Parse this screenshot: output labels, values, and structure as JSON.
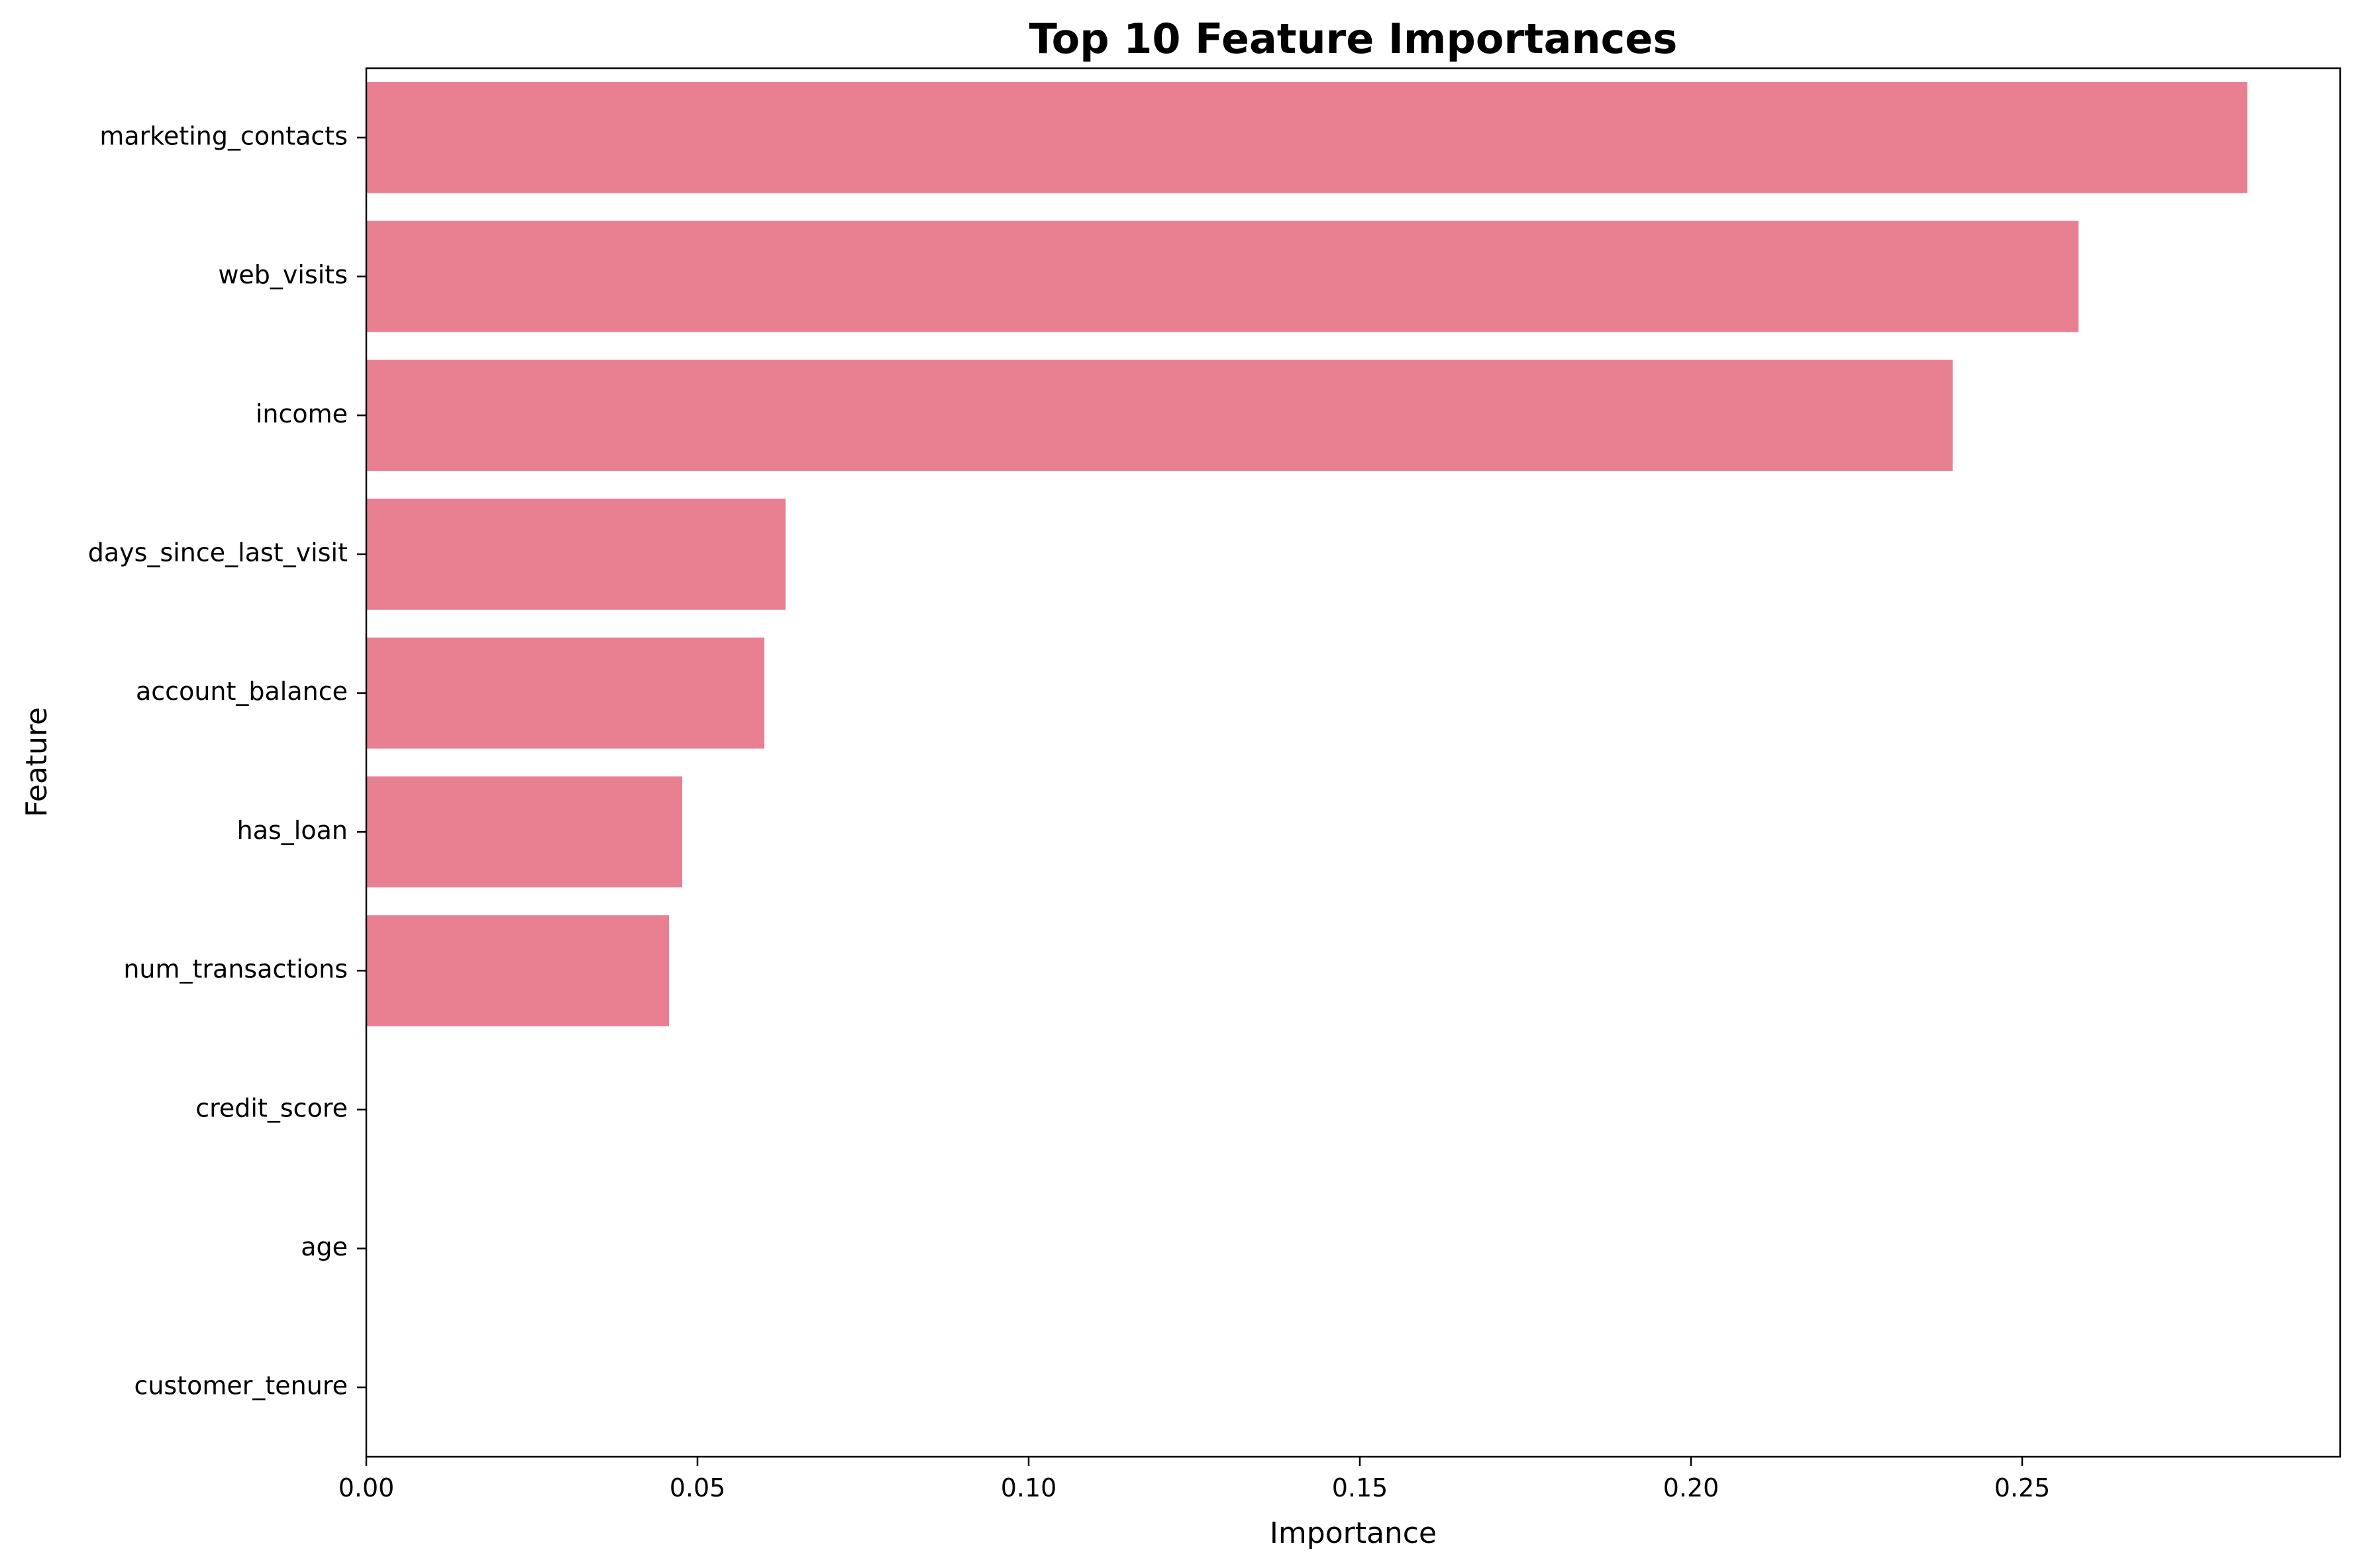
{
  "chart_data": {
    "type": "bar",
    "orientation": "horizontal",
    "title": "Top 10 Feature Importances",
    "xlabel": "Importance",
    "ylabel": "Feature",
    "categories": [
      "marketing_contacts",
      "web_visits",
      "income",
      "days_since_last_visit",
      "account_balance",
      "has_loan",
      "num_transactions",
      "credit_score",
      "age",
      "customer_tenure"
    ],
    "values": [
      0.284,
      0.2585,
      0.2395,
      0.0633,
      0.0601,
      0.0477,
      0.0457,
      0,
      0,
      0
    ],
    "xlim": [
      0,
      0.298
    ],
    "xticks": [
      0.0,
      0.05,
      0.1,
      0.15,
      0.2,
      0.25
    ],
    "xtick_labels": [
      "0.00",
      "0.05",
      "0.10",
      "0.15",
      "0.20",
      "0.25"
    ],
    "bar_color": "#e88092",
    "grid": false,
    "legend": "none"
  }
}
